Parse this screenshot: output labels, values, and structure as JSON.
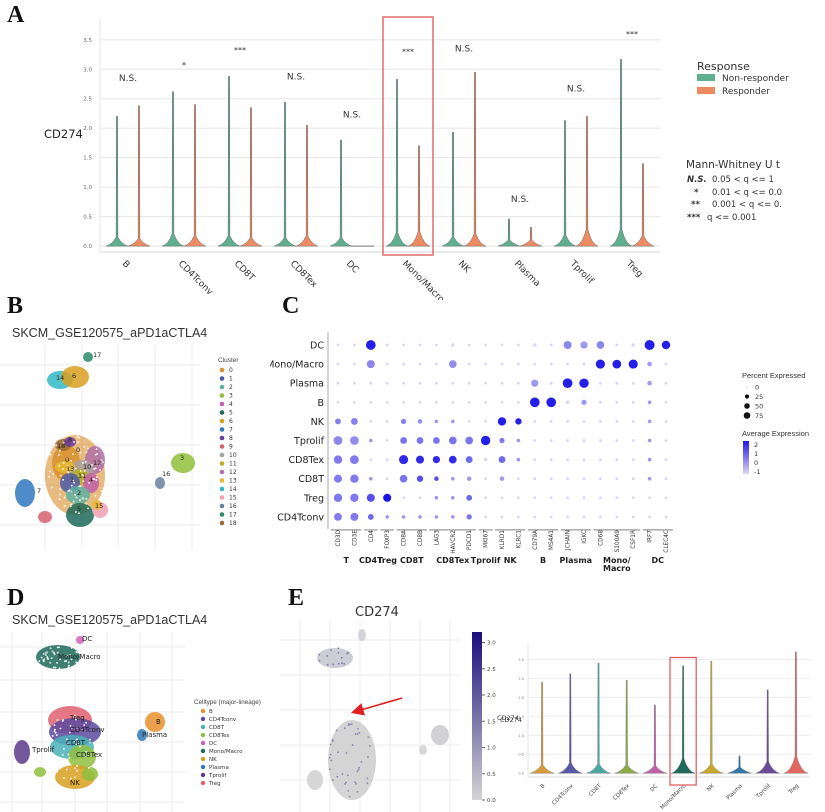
{
  "panels": {
    "A": {
      "letter": "A"
    },
    "B": {
      "letter": "B",
      "title": "SKCM_GSE120575_aPD1aCTLA4"
    },
    "C": {
      "letter": "C"
    },
    "D": {
      "letter": "D",
      "title": "SKCM_GSE120575_aPD1aCTLA4"
    },
    "E": {
      "letter": "E",
      "title": "CD274"
    }
  },
  "colors": {
    "non_responder": "#5fae8f",
    "responder": "#ee8a62",
    "highlight_box": "#e05555",
    "dot_low": "#d8d0ee",
    "dot_high": "#1a12e0",
    "featureplot_low": "#d4d4d4",
    "featureplot_high": "#1a0e7a"
  },
  "chart_data": [
    {
      "id": "A",
      "type": "violin",
      "title": "",
      "ylabel": "CD274",
      "xlabel": "",
      "ylim": [
        -0.1,
        3.7
      ],
      "yticks": [
        "0.0",
        "0.5",
        "1.0",
        "1.5",
        "2.0",
        "2.5",
        "3.0",
        "3.5"
      ],
      "grid": true,
      "categories": [
        "B",
        "CD4Tconv",
        "CD8T",
        "CD8Tex",
        "DC",
        "Mono/Macro",
        "NK",
        "Plasma",
        "Tprolif",
        "Treg"
      ],
      "series": [
        {
          "name": "Non-responder",
          "max": [
            2.2,
            2.62,
            2.88,
            2.44,
            1.8,
            2.83,
            1.93,
            0.46,
            2.13,
            3.17
          ],
          "density_peak": [
            0.12,
            0.2,
            0.15,
            0.1,
            0.1,
            0.22,
            0.12,
            0.03,
            0.17,
            0.3
          ]
        },
        {
          "name": "Responder",
          "max": [
            2.38,
            2.4,
            2.35,
            2.05,
            0.0,
            1.7,
            2.95,
            0.32,
            2.2,
            1.4
          ],
          "density_peak": [
            0.08,
            0.15,
            0.1,
            0.15,
            0.0,
            0.25,
            0.2,
            0.03,
            0.3,
            0.15
          ]
        }
      ],
      "annotations": [
        "N.S.",
        "*",
        "***",
        "N.S.",
        "N.S.",
        "***",
        "N.S.",
        "N.S.",
        "N.S.",
        "***"
      ],
      "annotation_y": [
        2.8,
        3.02,
        3.28,
        2.83,
        2.18,
        3.25,
        3.3,
        0.75,
        2.62,
        3.55
      ],
      "highlighted_category": "Mono/Macro",
      "legend": {
        "title": "Response",
        "entries": [
          "Non-responder",
          "Responder"
        ],
        "placement": "right"
      },
      "stat_legend": {
        "title": "Mann-Whitney U t",
        "entries": [
          {
            "symbol": "N.S.",
            "text": "0.05 < q <= 1"
          },
          {
            "symbol": "*",
            "text": "0.01 < q <= 0.0"
          },
          {
            "symbol": "**",
            "text": "0.001 < q <= 0."
          },
          {
            "symbol": "***",
            "text": "q <= 0.001"
          }
        ]
      }
    },
    {
      "id": "B",
      "type": "scatter",
      "title": "SKCM_GSE120575_aPD1aCTLA4",
      "legend": {
        "title": "Cluster",
        "entries": [
          "0",
          "1",
          "2",
          "3",
          "4",
          "5",
          "6",
          "7",
          "8",
          "9",
          "10",
          "11",
          "12",
          "13",
          "14",
          "15",
          "16",
          "17",
          "18"
        ],
        "colors": [
          "#d8902c",
          "#4a5aa8",
          "#5fb0a0",
          "#8fbf3a",
          "#c060a8",
          "#1f6a5a",
          "#d9a020",
          "#2f78c0",
          "#6a3a9a",
          "#d86070",
          "#a8a0a0",
          "#b8b020",
          "#b070a8",
          "#e8b830",
          "#30b8c8",
          "#f0a0b0",
          "#6a80a0",
          "#2a8a6a",
          "#9a6a30"
        ],
        "placement": "right"
      },
      "cluster_labels": [
        {
          "label": "17",
          "x": 0.62,
          "y": 0.92
        },
        {
          "label": "14",
          "x": 0.36,
          "y": 0.78
        },
        {
          "label": "6",
          "x": 0.48,
          "y": 0.78
        },
        {
          "label": "3",
          "x": 1.86,
          "y": 0.28
        },
        {
          "label": "16",
          "x": 1.63,
          "y": 0.12
        },
        {
          "label": "7",
          "x": 0.2,
          "y": -0.05
        },
        {
          "label": "18",
          "x": 0.43,
          "y": 0.33
        },
        {
          "label": "8",
          "x": 0.5,
          "y": 0.37
        },
        {
          "label": "0",
          "x": 0.56,
          "y": 0.3
        },
        {
          "label": "0",
          "x": 0.45,
          "y": 0.22
        },
        {
          "label": "13",
          "x": 0.46,
          "y": 0.16
        },
        {
          "label": "12",
          "x": 0.76,
          "y": 0.15
        },
        {
          "label": "10",
          "x": 0.66,
          "y": 0.1
        },
        {
          "label": "11",
          "x": 0.63,
          "y": 0.05
        },
        {
          "label": "1",
          "x": 0.52,
          "y": 0.0
        },
        {
          "label": "4",
          "x": 0.72,
          "y": 0.0
        },
        {
          "label": "2",
          "x": 0.6,
          "y": -0.1
        },
        {
          "label": "15",
          "x": 0.8,
          "y": -0.16
        },
        {
          "label": "5",
          "x": 0.64,
          "y": -0.2
        }
      ]
    },
    {
      "id": "C",
      "type": "dot",
      "rows": [
        "DC",
        "Mono/Macro",
        "Plasma",
        "B",
        "NK",
        "Tprolif",
        "CD8Tex",
        "CD8T",
        "Treg",
        "CD4Tconv"
      ],
      "genes": [
        "CD3D",
        "CD3E",
        "CD4",
        "FOXP3",
        "CD8A",
        "CD8B",
        "LAG3",
        "HAVCR2",
        "PDCD1",
        "MKI67",
        "KLRD1",
        "KLRC1",
        "CD79A",
        "MS4A1",
        "JCHAIN",
        "IGKC",
        "CD68",
        "S100A9",
        "CSF1R",
        "IRF7",
        "CLEC4C"
      ],
      "gene_groups": [
        {
          "label": "T",
          "span": 2
        },
        {
          "label": "CD4T",
          "span": 1
        },
        {
          "label": "Treg",
          "span": 1
        },
        {
          "label": "CD8T",
          "span": 2
        },
        {
          "label": "CD8Tex",
          "span": 3
        },
        {
          "label": "Tprolif",
          "span": 1
        },
        {
          "label": "NK",
          "span": 2
        },
        {
          "label": "B",
          "span": 2
        },
        {
          "label": "Plasma",
          "span": 2
        },
        {
          "label": "Mono/\nMacro",
          "span": 3
        },
        {
          "label": "DC",
          "span": 2
        }
      ],
      "pct": [
        [
          2,
          2,
          70,
          2,
          2,
          2,
          2,
          5,
          2,
          2,
          2,
          2,
          5,
          2,
          45,
          35,
          40,
          2,
          5,
          75,
          50
        ],
        [
          2,
          2,
          45,
          2,
          2,
          2,
          2,
          40,
          2,
          2,
          2,
          2,
          2,
          2,
          2,
          2,
          60,
          55,
          60,
          10,
          2
        ],
        [
          2,
          2,
          2,
          2,
          2,
          2,
          2,
          2,
          2,
          2,
          2,
          2,
          35,
          2,
          70,
          65,
          2,
          2,
          2,
          10,
          2
        ],
        [
          2,
          2,
          2,
          2,
          2,
          2,
          2,
          2,
          2,
          2,
          2,
          2,
          70,
          70,
          5,
          15,
          2,
          2,
          2,
          5,
          2
        ],
        [
          20,
          30,
          2,
          2,
          15,
          10,
          5,
          5,
          2,
          2,
          50,
          25,
          2,
          2,
          2,
          2,
          2,
          2,
          2,
          5,
          2
        ],
        [
          55,
          55,
          5,
          2,
          30,
          30,
          30,
          40,
          40,
          65,
          15,
          5,
          2,
          2,
          2,
          2,
          2,
          2,
          2,
          5,
          2
        ],
        [
          50,
          55,
          2,
          2,
          60,
          45,
          35,
          40,
          30,
          5,
          30,
          5,
          2,
          2,
          2,
          2,
          2,
          2,
          2,
          5,
          2
        ],
        [
          45,
          50,
          5,
          2,
          40,
          25,
          10,
          5,
          10,
          2,
          10,
          2,
          2,
          2,
          2,
          2,
          2,
          2,
          2,
          5,
          2
        ],
        [
          50,
          50,
          45,
          45,
          2,
          2,
          5,
          5,
          20,
          2,
          2,
          2,
          2,
          2,
          2,
          2,
          2,
          2,
          2,
          2,
          2
        ],
        [
          40,
          45,
          20,
          5,
          5,
          5,
          5,
          5,
          15,
          2,
          2,
          2,
          2,
          2,
          2,
          2,
          2,
          2,
          2,
          2,
          2
        ]
      ],
      "avg": [
        [
          -1,
          -1,
          2,
          -1,
          -1,
          -1,
          -1,
          -1,
          -1,
          -1,
          -1,
          -1,
          -1,
          -1,
          0.3,
          0,
          0.3,
          -1,
          -1,
          2,
          2
        ],
        [
          -1,
          -1,
          0.3,
          -1,
          -1,
          -1,
          -1,
          0.2,
          -1,
          -1,
          -1,
          -1,
          -1,
          -1,
          -1,
          -1,
          2,
          2,
          2,
          0,
          -1
        ],
        [
          -1,
          -1,
          -1,
          -1,
          -1,
          -1,
          -1,
          -1,
          -1,
          -1,
          -1,
          -1,
          0,
          -1,
          2,
          2,
          -1,
          -1,
          -1,
          0,
          -1
        ],
        [
          -1,
          -1,
          -1,
          -1,
          -1,
          -1,
          -1,
          -1,
          -1,
          -1,
          -1,
          -1,
          2,
          2,
          -1,
          0,
          -1,
          -1,
          -1,
          0,
          -1
        ],
        [
          0.4,
          0.4,
          -1,
          -1,
          0.4,
          0.2,
          0,
          0,
          -1,
          -1,
          2,
          2,
          -1,
          -1,
          -1,
          -1,
          -1,
          -1,
          -1,
          0,
          -1
        ],
        [
          0.3,
          0.2,
          0,
          -1,
          0.6,
          0.6,
          0.6,
          0.6,
          0.6,
          2,
          0.5,
          0,
          -1,
          -1,
          -1,
          -1,
          -1,
          -1,
          -1,
          0,
          -1
        ],
        [
          0.5,
          0.5,
          -1,
          -1,
          1.8,
          1.8,
          1.8,
          1.8,
          0.8,
          -1,
          0.8,
          0,
          -1,
          -1,
          -1,
          -1,
          -1,
          -1,
          -1,
          0,
          -1
        ],
        [
          0.5,
          0.5,
          0,
          -1,
          0.6,
          1.2,
          1.2,
          0,
          0,
          -1,
          0,
          -1,
          -1,
          -1,
          -1,
          -1,
          -1,
          -1,
          -1,
          0,
          -1
        ],
        [
          0.5,
          0.5,
          1.2,
          2.2,
          -1,
          -1,
          0,
          0,
          0.8,
          -1,
          -1,
          -1,
          -1,
          -1,
          -1,
          -1,
          -1,
          -1,
          -1,
          -1,
          -1
        ],
        [
          0.5,
          0.5,
          0.8,
          0,
          0,
          0,
          0,
          0,
          0.6,
          -1,
          -1,
          -1,
          -1,
          -1,
          -1,
          -1,
          -1,
          -1,
          -1,
          -1,
          -1
        ]
      ],
      "size_legend": {
        "title": "Percent Expressed",
        "values": [
          "0",
          "25",
          "50",
          "75"
        ]
      },
      "color_legend": {
        "title": "Average Expression",
        "ticks": [
          "2",
          "1",
          "0",
          "-1"
        ],
        "range": [
          -1,
          2.2
        ]
      }
    },
    {
      "id": "D",
      "type": "scatter",
      "title": "SKCM_GSE120575_aPD1aCTLA4",
      "legend": {
        "title": "Celltype (major-lineage)",
        "entries": [
          "B",
          "CD4Tconv",
          "CD8T",
          "CD8Tex",
          "DC",
          "Mono/Macro",
          "NK",
          "Plasma",
          "Tprolif",
          "Treg"
        ],
        "colors": [
          "#e8902c",
          "#5a4aa0",
          "#4ab0b8",
          "#8fc040",
          "#d060b8",
          "#1f6a5a",
          "#d9a020",
          "#2f78b8",
          "#5a3a8a",
          "#e06070"
        ],
        "placement": "right"
      },
      "cluster_labels": [
        {
          "label": "DC",
          "x": 0.62,
          "y": 0.95
        },
        {
          "label": "Mono/Macro",
          "x": 0.6,
          "y": 0.78
        },
        {
          "label": "Treg",
          "x": 0.55,
          "y": 0.35
        },
        {
          "label": "CD4Tconv",
          "x": 0.62,
          "y": 0.25
        },
        {
          "label": "CD8T",
          "x": 0.56,
          "y": 0.12
        },
        {
          "label": "CD8Tex",
          "x": 0.68,
          "y": 0.03
        },
        {
          "label": "Tprolif",
          "x": 0.28,
          "y": 0.07
        },
        {
          "label": "NK",
          "x": 0.58,
          "y": -0.15
        },
        {
          "label": "B",
          "x": 1.7,
          "y": 0.32
        },
        {
          "label": "Plasma",
          "x": 1.62,
          "y": 0.22
        }
      ]
    },
    {
      "id": "E-feature",
      "type": "scatter",
      "title": "CD274",
      "colorbar": {
        "label": "CD274",
        "ticks": [
          "0.0",
          "0.5",
          "1.0",
          "1.5",
          "2.0",
          "2.5",
          "3.0"
        ],
        "range": [
          0,
          3.2
        ]
      },
      "annotation": "red arrow pointing to Mono/Macro cluster"
    },
    {
      "id": "E-violin",
      "type": "violin",
      "ylabel": "CD274",
      "ylim": [
        -0.1,
        3.3
      ],
      "yticks": [
        "0.0",
        "0.5",
        "1.0",
        "1.5",
        "2.0",
        "2.5",
        "3.0"
      ],
      "grid": true,
      "categories": [
        "B",
        "CD4Tconv",
        "CD8T",
        "CD8Tex",
        "DC",
        "Mono/Macro",
        "NK",
        "Plasma",
        "Tprolif",
        "Treg"
      ],
      "max": [
        2.4,
        2.62,
        2.9,
        2.45,
        1.8,
        2.83,
        2.95,
        0.46,
        2.2,
        3.2
      ],
      "density_peak": [
        0.1,
        0.15,
        0.12,
        0.1,
        0.08,
        0.25,
        0.12,
        0.03,
        0.18,
        0.3
      ],
      "colors": [
        "#d89a38",
        "#5a58a8",
        "#4aa8a0",
        "#8aaa48",
        "#c060a8",
        "#1f6a5a",
        "#c8a828",
        "#2f78a8",
        "#6a4a9a",
        "#e06860"
      ],
      "highlighted_category": "Mono/Macro"
    }
  ]
}
